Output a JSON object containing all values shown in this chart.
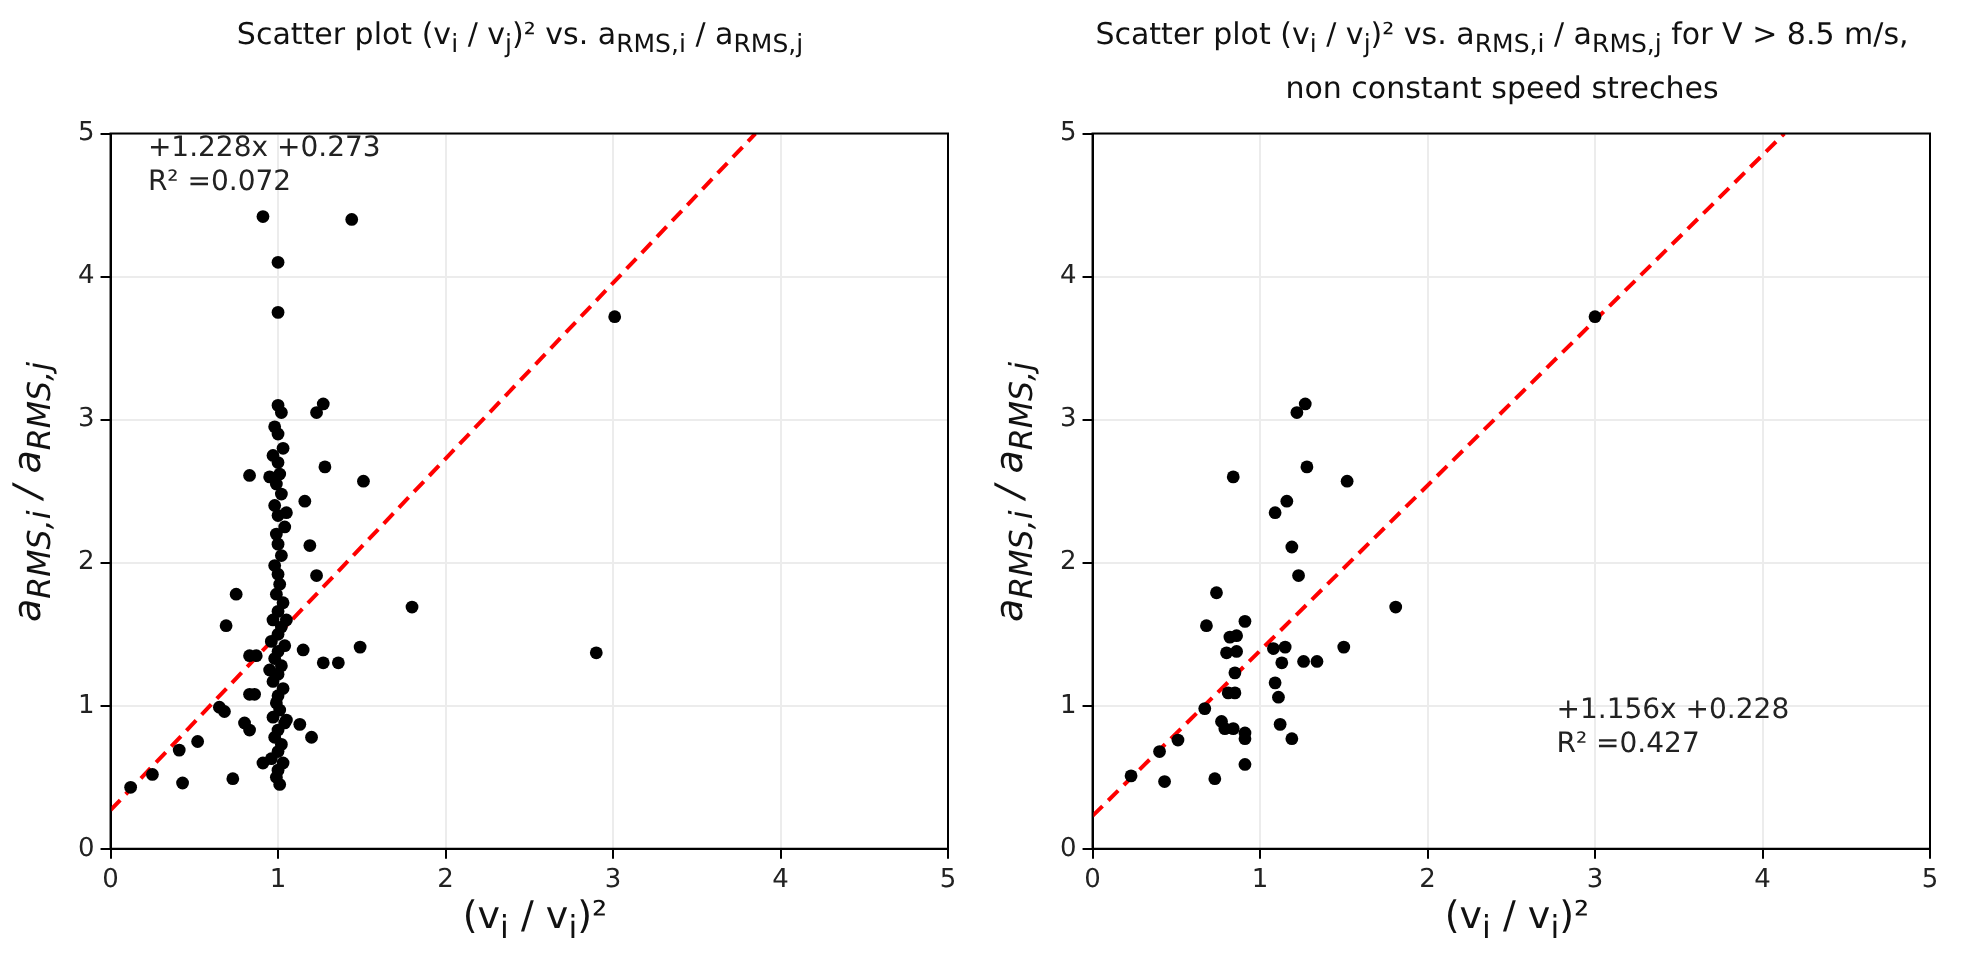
{
  "chart_data": [
    {
      "type": "scatter",
      "title": "Scatter plot (v$_{i}$ / v$_{j}$)² vs. a$_{RMS,i}$ / a$_{RMS,j}$",
      "xlabel": "(v$_{i}$ / v$_{i}$)²",
      "ylabel": "a$_{RMS,i}$ / a$_{RMS,j}$",
      "annotations": [
        "+1.228x +0.273",
        "R² =0.072"
      ],
      "xlim": [
        0,
        5
      ],
      "ylim": [
        0,
        5
      ],
      "xticks": [
        0,
        1,
        2,
        3,
        4,
        5
      ],
      "yticks": [
        0,
        1,
        2,
        3,
        4,
        5
      ],
      "grid": true,
      "marker": "circle",
      "series": [
        {
          "color": "#000000",
          "x": [
            0.91,
            1.44,
            1.0,
            1.0,
            1.27,
            1.23,
            0.83,
            1.28,
            1.51,
            1.16,
            1.19,
            1.23,
            0.75,
            0.69,
            1.8,
            0.83,
            0.87,
            1.49,
            1.27,
            1.36,
            1.15,
            0.83,
            0.86,
            0.65,
            0.68,
            0.8,
            0.83,
            1.13,
            1.2,
            0.52,
            0.41,
            0.25,
            0.12,
            0.43,
            0.73,
            0.91,
            3.01,
            2.9,
            1.0,
            1.02,
            0.98,
            1.0,
            1.03,
            0.97,
            1.0,
            1.01,
            0.99,
            1.02,
            0.98,
            1.0,
            1.04,
            0.99,
            1.0,
            1.02,
            0.98,
            1.0,
            1.01,
            0.99,
            1.03,
            1.0,
            0.97,
            1.02,
            1.0,
            0.96,
            1.04,
            1.0,
            0.98,
            1.02,
            1.0,
            0.97,
            1.03,
            1.0,
            0.99,
            1.01,
            0.97,
            1.04,
            1.0,
            0.98,
            1.02,
            1.0,
            0.96,
            1.03,
            1.0,
            0.99,
            1.01,
            1.05,
            0.95,
            1.05,
            0.95,
            1.05
          ],
          "values": [
            4.42,
            4.4,
            4.1,
            3.75,
            3.11,
            3.05,
            2.61,
            2.67,
            2.57,
            2.43,
            2.12,
            1.91,
            1.78,
            1.56,
            1.69,
            1.35,
            1.35,
            1.41,
            1.3,
            1.3,
            1.39,
            1.08,
            1.08,
            0.99,
            0.96,
            0.88,
            0.83,
            0.87,
            0.78,
            0.75,
            0.69,
            0.52,
            0.43,
            0.46,
            0.49,
            0.6,
            3.72,
            1.37,
            3.1,
            3.05,
            2.95,
            2.9,
            2.8,
            2.75,
            2.7,
            2.62,
            2.55,
            2.48,
            2.4,
            2.33,
            2.25,
            2.2,
            2.13,
            2.05,
            1.98,
            1.92,
            1.85,
            1.78,
            1.72,
            1.66,
            1.6,
            1.55,
            1.5,
            1.45,
            1.42,
            1.38,
            1.33,
            1.28,
            1.22,
            1.17,
            1.12,
            1.07,
            1.02,
            0.97,
            0.92,
            0.88,
            0.83,
            0.78,
            0.73,
            0.68,
            0.63,
            0.6,
            0.55,
            0.5,
            0.45,
            0.9,
            1.25,
            1.6,
            2.6,
            2.35
          ]
        },
        {
          "type": "line",
          "color": "#ff0000",
          "line_style": "dashed",
          "marker": "none",
          "x": [
            0,
            3.85
          ],
          "values": [
            0.27,
            5.0
          ]
        }
      ]
    },
    {
      "type": "scatter",
      "title": "Scatter plot (v$_{i}$ / v$_{j}$)² vs. a$_{RMS,i}$ / a$_{RMS,j}$ for V > 8.5 m/s, non constant speed streches",
      "xlabel": "(v$_{i}$ / v$_{i}$)²",
      "ylabel": "a$_{RMS,i}$ / a$_{RMS,j}$",
      "annotations": [
        "+1.156x +0.228",
        "R² =0.427"
      ],
      "xlim": [
        0,
        5
      ],
      "ylim": [
        0,
        5
      ],
      "xticks": [
        0,
        1,
        2,
        3,
        4,
        5
      ],
      "yticks": [
        0,
        1,
        2,
        3,
        4,
        5
      ],
      "grid": true,
      "marker": "circle",
      "series": [
        {
          "color": "#000000",
          "x": [
            1.27,
            1.22,
            0.84,
            1.28,
            1.52,
            1.16,
            1.09,
            1.19,
            1.23,
            0.74,
            1.81,
            0.91,
            0.68,
            0.82,
            0.86,
            0.8,
            0.86,
            1.08,
            1.15,
            1.13,
            1.26,
            1.34,
            1.5,
            0.85,
            1.09,
            0.81,
            0.85,
            1.11,
            0.67,
            0.77,
            0.81,
            0.84,
            0.79,
            0.91,
            0.91,
            1.12,
            1.19,
            0.51,
            0.4,
            0.23,
            0.43,
            0.73,
            0.91,
            3.0
          ],
          "values": [
            3.11,
            3.05,
            2.6,
            2.67,
            2.57,
            2.43,
            2.35,
            2.11,
            1.91,
            1.79,
            1.69,
            1.59,
            1.56,
            1.48,
            1.49,
            1.37,
            1.38,
            1.4,
            1.41,
            1.3,
            1.31,
            1.31,
            1.41,
            1.23,
            1.16,
            1.09,
            1.09,
            1.06,
            0.98,
            0.89,
            null,
            0.84,
            0.84,
            0.81,
            0.77,
            0.87,
            0.77,
            0.76,
            0.68,
            0.51,
            0.47,
            0.49,
            0.59,
            3.72
          ]
        },
        {
          "type": "line",
          "color": "#ff0000",
          "line_style": "dashed",
          "marker": "none",
          "x": [
            0,
            4.13
          ],
          "values": [
            0.23,
            5.0
          ]
        }
      ]
    }
  ]
}
